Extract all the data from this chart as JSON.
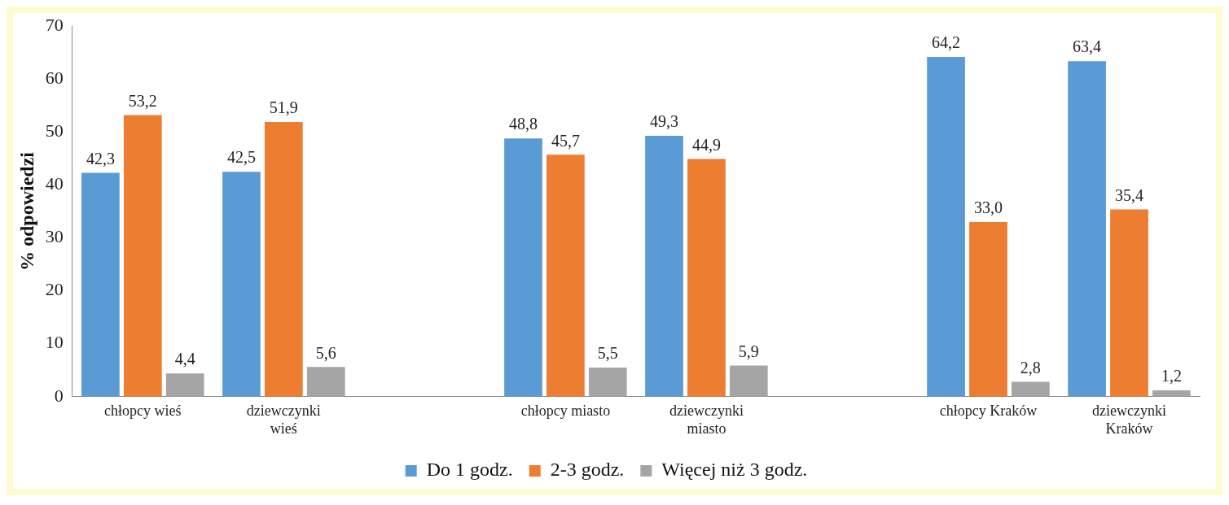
{
  "chart_data": {
    "type": "bar",
    "ylabel": "% odpowiedzi",
    "categories": [
      "chłopcy wieś",
      "dziewczynki wieś",
      null,
      "chłopcy miasto",
      "dziewczynki miasto",
      null,
      "chłopcy Kraków",
      "dziewczynki Kraków"
    ],
    "series": [
      {
        "name": "Do 1 godz.",
        "color": "#5b9bd5",
        "values": [
          42.3,
          42.5,
          null,
          48.8,
          49.3,
          null,
          64.2,
          63.4
        ],
        "value_labels": [
          "42,3",
          "42,5",
          null,
          "48,8",
          "49,3",
          null,
          "64,2",
          "63,4"
        ]
      },
      {
        "name": "2-3 godz.",
        "color": "#ed7d31",
        "values": [
          53.2,
          51.9,
          null,
          45.7,
          44.9,
          null,
          33.0,
          35.4
        ],
        "value_labels": [
          "53,2",
          "51,9",
          null,
          "45,7",
          "44,9",
          null,
          "33,0",
          "35,4"
        ]
      },
      {
        "name": "Więcej niż 3 godz.",
        "color": "#a5a5a5",
        "values": [
          4.4,
          5.6,
          null,
          5.5,
          5.9,
          null,
          2.8,
          1.2
        ],
        "value_labels": [
          "4,4",
          "5,6",
          null,
          "5,5",
          "5,9",
          null,
          "2,8",
          "1,2"
        ]
      }
    ],
    "ylim": [
      0,
      70
    ],
    "yticks": [
      0,
      10,
      20,
      30,
      40,
      50,
      60,
      70
    ],
    "grid": false,
    "legend": "bottom"
  }
}
